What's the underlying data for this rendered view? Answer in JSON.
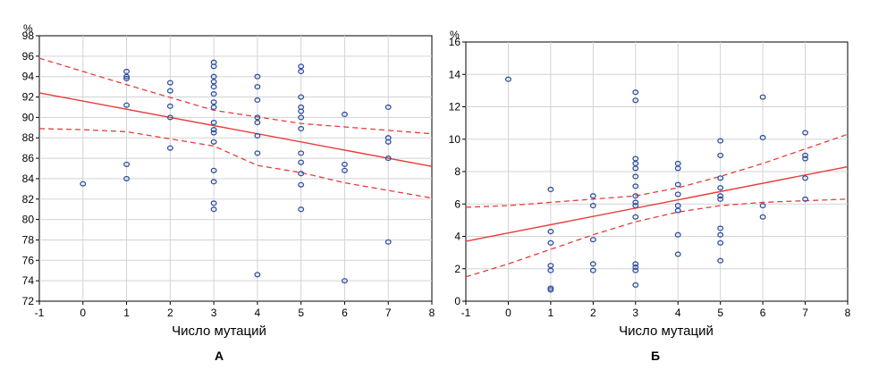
{
  "chart_data": [
    {
      "type": "scatter",
      "panel_label": "А",
      "xlabel": "Число мутаций",
      "ylabel": "%",
      "xlim": [
        -1,
        8
      ],
      "ylim": [
        72,
        98
      ],
      "xticks": [
        -1,
        0,
        1,
        2,
        3,
        4,
        5,
        6,
        7,
        8
      ],
      "yticks": [
        72,
        74,
        76,
        78,
        80,
        82,
        84,
        86,
        88,
        90,
        92,
        94,
        96,
        98
      ],
      "grid": true,
      "points": [
        [
          0,
          83.5
        ],
        [
          1,
          94.5
        ],
        [
          1,
          94.0
        ],
        [
          1,
          93.8
        ],
        [
          1,
          91.2
        ],
        [
          1,
          85.4
        ],
        [
          1,
          84.0
        ],
        [
          2,
          93.4
        ],
        [
          2,
          92.6
        ],
        [
          2,
          91.1
        ],
        [
          2,
          90.0
        ],
        [
          2,
          87.0
        ],
        [
          3,
          95.4
        ],
        [
          3,
          95.0
        ],
        [
          3,
          94.0
        ],
        [
          3,
          93.5
        ],
        [
          3,
          93.0
        ],
        [
          3,
          92.3
        ],
        [
          3,
          91.5
        ],
        [
          3,
          91.0
        ],
        [
          3,
          89.5
        ],
        [
          3,
          88.8
        ],
        [
          3,
          88.5
        ],
        [
          3,
          87.6
        ],
        [
          3,
          84.8
        ],
        [
          3,
          83.7
        ],
        [
          3,
          81.6
        ],
        [
          3,
          81.0
        ],
        [
          4,
          94.0
        ],
        [
          4,
          93.0
        ],
        [
          4,
          91.7
        ],
        [
          4,
          90.0
        ],
        [
          4,
          89.5
        ],
        [
          4,
          88.2
        ],
        [
          4,
          86.5
        ],
        [
          4,
          74.6
        ],
        [
          5,
          95.0
        ],
        [
          5,
          94.5
        ],
        [
          5,
          92.0
        ],
        [
          5,
          91.0
        ],
        [
          5,
          90.6
        ],
        [
          5,
          90.0
        ],
        [
          5,
          88.9
        ],
        [
          5,
          86.5
        ],
        [
          5,
          85.6
        ],
        [
          5,
          84.5
        ],
        [
          5,
          83.4
        ],
        [
          5,
          81.0
        ],
        [
          6,
          90.3
        ],
        [
          6,
          85.4
        ],
        [
          6,
          84.8
        ],
        [
          6,
          74.0
        ],
        [
          7,
          91.0
        ],
        [
          7,
          88.0
        ],
        [
          7,
          87.6
        ],
        [
          7,
          86.0
        ],
        [
          7,
          77.8
        ]
      ],
      "fit_line": {
        "x": [
          -1,
          8
        ],
        "y": [
          92.4,
          85.2
        ]
      },
      "ci_upper": {
        "x": [
          -1,
          1,
          3,
          5,
          8
        ],
        "y": [
          95.8,
          93.2,
          90.7,
          89.4,
          88.4
        ]
      },
      "ci_lower": {
        "x": [
          -1,
          0,
          1,
          3,
          4,
          5,
          6,
          8
        ],
        "y": [
          88.9,
          88.8,
          88.6,
          87.2,
          85.3,
          84.6,
          83.6,
          82.1
        ]
      },
      "colors": {
        "points": "#2e4f9e",
        "lines": "#e83b3b",
        "grid": "#d3d3d3"
      }
    },
    {
      "type": "scatter",
      "panel_label": "Б",
      "xlabel": "Число мутаций",
      "ylabel": "%",
      "xlim": [
        -1,
        8
      ],
      "ylim": [
        0,
        16
      ],
      "xticks": [
        -1,
        0,
        1,
        2,
        3,
        4,
        5,
        6,
        7,
        8
      ],
      "yticks": [
        0,
        2,
        4,
        6,
        8,
        10,
        12,
        14,
        16
      ],
      "grid": true,
      "points": [
        [
          0,
          13.7
        ],
        [
          1,
          6.9
        ],
        [
          1,
          4.3
        ],
        [
          1,
          3.6
        ],
        [
          1,
          2.2
        ],
        [
          1,
          1.9
        ],
        [
          1,
          0.8
        ],
        [
          1,
          0.7
        ],
        [
          2,
          6.5
        ],
        [
          2,
          5.9
        ],
        [
          2,
          3.8
        ],
        [
          2,
          2.3
        ],
        [
          2,
          1.9
        ],
        [
          3,
          12.9
        ],
        [
          3,
          12.4
        ],
        [
          3,
          8.8
        ],
        [
          3,
          8.5
        ],
        [
          3,
          8.2
        ],
        [
          3,
          7.7
        ],
        [
          3,
          7.1
        ],
        [
          3,
          6.5
        ],
        [
          3,
          6.1
        ],
        [
          3,
          5.9
        ],
        [
          3,
          5.2
        ],
        [
          3,
          2.3
        ],
        [
          3,
          2.1
        ],
        [
          3,
          1.9
        ],
        [
          3,
          1.0
        ],
        [
          4,
          8.5
        ],
        [
          4,
          8.2
        ],
        [
          4,
          7.2
        ],
        [
          4,
          6.6
        ],
        [
          4,
          5.9
        ],
        [
          4,
          5.6
        ],
        [
          4,
          4.1
        ],
        [
          4,
          2.9
        ],
        [
          5,
          9.9
        ],
        [
          5,
          9.0
        ],
        [
          5,
          7.6
        ],
        [
          5,
          7.0
        ],
        [
          5,
          6.5
        ],
        [
          5,
          6.3
        ],
        [
          5,
          4.5
        ],
        [
          5,
          4.1
        ],
        [
          5,
          3.6
        ],
        [
          5,
          2.5
        ],
        [
          6,
          12.6
        ],
        [
          6,
          10.1
        ],
        [
          6,
          5.9
        ],
        [
          6,
          5.2
        ],
        [
          7,
          10.4
        ],
        [
          7,
          9.0
        ],
        [
          7,
          8.8
        ],
        [
          7,
          7.6
        ],
        [
          7,
          6.3
        ]
      ],
      "fit_line": {
        "x": [
          -1,
          8
        ],
        "y": [
          3.7,
          8.3
        ]
      },
      "ci_upper": {
        "x": [
          -1,
          0,
          1,
          2,
          3,
          4,
          5,
          6,
          7,
          8
        ],
        "y": [
          5.8,
          5.9,
          6.1,
          6.3,
          6.5,
          7.0,
          7.7,
          8.5,
          9.4,
          10.3
        ]
      },
      "ci_lower": {
        "x": [
          -1,
          0,
          1,
          2,
          3,
          4,
          5,
          6,
          7,
          8
        ],
        "y": [
          1.5,
          2.3,
          3.2,
          4.1,
          4.9,
          5.5,
          5.9,
          6.1,
          6.2,
          6.3
        ]
      },
      "colors": {
        "points": "#2e4f9e",
        "lines": "#e83b3b",
        "grid": "#d3d3d3"
      }
    }
  ]
}
